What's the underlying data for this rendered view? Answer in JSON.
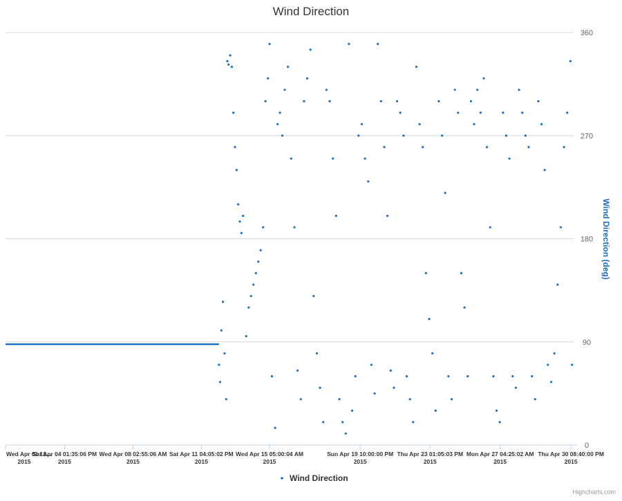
{
  "chart_data": {
    "type": "scatter",
    "title": "Wind Direction",
    "ylabel": "Wind Direction (deg)",
    "xlabel": "",
    "ylim": [
      0,
      360
    ],
    "y_ticks": [
      0,
      90,
      180,
      270,
      360
    ],
    "x_range": [
      "2015-04-01 12:00",
      "2015-05-01 00:00"
    ],
    "x_ticks": [
      {
        "label": "Wed Apr 01 12...",
        "year": "2015",
        "date": "2015-04-01 12:00"
      },
      {
        "label": "Sat Apr 04 01:35:06 PM",
        "year": "2015",
        "date": "2015-04-04 13:35"
      },
      {
        "label": "Wed Apr 08 02:55:06 AM",
        "year": "2015",
        "date": "2015-04-08 02:55"
      },
      {
        "label": "Sat Apr 11 04:05:02 PM",
        "year": "2015",
        "date": "2015-04-11 16:05"
      },
      {
        "label": "Wed Apr 15 05:00:04 AM",
        "year": "2015",
        "date": "2015-04-15 05:00"
      },
      {
        "label": "Sun Apr 19 10:00:00 PM",
        "year": "2015",
        "date": "2015-04-19 22:00"
      },
      {
        "label": "Thu Apr 23 01:05:03 PM",
        "year": "2015",
        "date": "2015-04-23 13:05"
      },
      {
        "label": "Mon Apr 27 04:25:02 AM",
        "year": "2015",
        "date": "2015-04-27 04:25"
      },
      {
        "label": "Thu Apr 30 08:40:00 PM",
        "year": "2015",
        "date": "2015-04-30 20:40"
      }
    ],
    "grid": true,
    "legend_position": "bottom-center",
    "series": [
      {
        "name": "Wind Direction",
        "color": "#1a6fbf",
        "constant_segment": {
          "start": "2015-04-01 12:00",
          "end": "2015-04-12 14:00",
          "value": 88
        },
        "points": [
          [
            "2015-04-12 14:00",
            70
          ],
          [
            "2015-04-12 15:30",
            55
          ],
          [
            "2015-04-12 17:00",
            100
          ],
          [
            "2015-04-12 19:00",
            125
          ],
          [
            "2015-04-12 21:00",
            80
          ],
          [
            "2015-04-12 23:00",
            40
          ],
          [
            "2015-04-13 00:30",
            335
          ],
          [
            "2015-04-13 02:00",
            332
          ],
          [
            "2015-04-13 04:00",
            340
          ],
          [
            "2015-04-13 06:00",
            330
          ],
          [
            "2015-04-13 08:00",
            290
          ],
          [
            "2015-04-13 10:00",
            260
          ],
          [
            "2015-04-13 12:00",
            240
          ],
          [
            "2015-04-13 14:00",
            210
          ],
          [
            "2015-04-13 16:00",
            195
          ],
          [
            "2015-04-13 18:00",
            185
          ],
          [
            "2015-04-13 20:00",
            200
          ],
          [
            "2015-04-14 00:00",
            95
          ],
          [
            "2015-04-14 03:00",
            120
          ],
          [
            "2015-04-14 06:00",
            130
          ],
          [
            "2015-04-14 09:00",
            140
          ],
          [
            "2015-04-14 12:00",
            150
          ],
          [
            "2015-04-14 15:00",
            160
          ],
          [
            "2015-04-14 18:00",
            170
          ],
          [
            "2015-04-14 21:00",
            190
          ],
          [
            "2015-04-15 00:00",
            300
          ],
          [
            "2015-04-15 03:00",
            320
          ],
          [
            "2015-04-15 05:00",
            350
          ],
          [
            "2015-04-15 08:00",
            60
          ],
          [
            "2015-04-15 12:00",
            15
          ],
          [
            "2015-04-15 15:00",
            280
          ],
          [
            "2015-04-15 18:00",
            290
          ],
          [
            "2015-04-15 21:00",
            270
          ],
          [
            "2015-04-16 00:00",
            310
          ],
          [
            "2015-04-16 04:00",
            330
          ],
          [
            "2015-04-16 08:00",
            250
          ],
          [
            "2015-04-16 12:00",
            190
          ],
          [
            "2015-04-16 16:00",
            65
          ],
          [
            "2015-04-16 20:00",
            40
          ],
          [
            "2015-04-17 00:00",
            300
          ],
          [
            "2015-04-17 04:00",
            320
          ],
          [
            "2015-04-17 08:00",
            345
          ],
          [
            "2015-04-17 12:00",
            130
          ],
          [
            "2015-04-17 16:00",
            80
          ],
          [
            "2015-04-17 20:00",
            50
          ],
          [
            "2015-04-18 00:00",
            20
          ],
          [
            "2015-04-18 04:00",
            310
          ],
          [
            "2015-04-18 08:00",
            300
          ],
          [
            "2015-04-18 12:00",
            250
          ],
          [
            "2015-04-18 16:00",
            200
          ],
          [
            "2015-04-18 20:00",
            40
          ],
          [
            "2015-04-19 00:00",
            20
          ],
          [
            "2015-04-19 04:00",
            10
          ],
          [
            "2015-04-19 08:00",
            350
          ],
          [
            "2015-04-19 12:00",
            30
          ],
          [
            "2015-04-19 16:00",
            60
          ],
          [
            "2015-04-19 20:00",
            270
          ],
          [
            "2015-04-20 00:00",
            280
          ],
          [
            "2015-04-20 04:00",
            250
          ],
          [
            "2015-04-20 08:00",
            230
          ],
          [
            "2015-04-20 12:00",
            70
          ],
          [
            "2015-04-20 16:00",
            45
          ],
          [
            "2015-04-20 20:00",
            350
          ],
          [
            "2015-04-21 00:00",
            300
          ],
          [
            "2015-04-21 04:00",
            260
          ],
          [
            "2015-04-21 08:00",
            200
          ],
          [
            "2015-04-21 12:00",
            65
          ],
          [
            "2015-04-21 16:00",
            50
          ],
          [
            "2015-04-21 20:00",
            300
          ],
          [
            "2015-04-22 00:00",
            290
          ],
          [
            "2015-04-22 04:00",
            270
          ],
          [
            "2015-04-22 08:00",
            60
          ],
          [
            "2015-04-22 12:00",
            40
          ],
          [
            "2015-04-22 16:00",
            20
          ],
          [
            "2015-04-22 20:00",
            330
          ],
          [
            "2015-04-23 00:00",
            280
          ],
          [
            "2015-04-23 04:00",
            260
          ],
          [
            "2015-04-23 08:00",
            150
          ],
          [
            "2015-04-23 12:00",
            110
          ],
          [
            "2015-04-23 16:00",
            80
          ],
          [
            "2015-04-23 20:00",
            30
          ],
          [
            "2015-04-24 00:00",
            300
          ],
          [
            "2015-04-24 04:00",
            270
          ],
          [
            "2015-04-24 08:00",
            220
          ],
          [
            "2015-04-24 12:00",
            60
          ],
          [
            "2015-04-24 16:00",
            40
          ],
          [
            "2015-04-24 20:00",
            310
          ],
          [
            "2015-04-25 00:00",
            290
          ],
          [
            "2015-04-25 04:00",
            150
          ],
          [
            "2015-04-25 08:00",
            120
          ],
          [
            "2015-04-25 12:00",
            60
          ],
          [
            "2015-04-25 16:00",
            300
          ],
          [
            "2015-04-25 20:00",
            280
          ],
          [
            "2015-04-26 00:00",
            310
          ],
          [
            "2015-04-26 04:00",
            290
          ],
          [
            "2015-04-26 08:00",
            320
          ],
          [
            "2015-04-26 12:00",
            260
          ],
          [
            "2015-04-26 16:00",
            190
          ],
          [
            "2015-04-26 20:00",
            60
          ],
          [
            "2015-04-27 00:00",
            30
          ],
          [
            "2015-04-27 04:00",
            20
          ],
          [
            "2015-04-27 08:00",
            290
          ],
          [
            "2015-04-27 12:00",
            270
          ],
          [
            "2015-04-27 16:00",
            250
          ],
          [
            "2015-04-27 20:00",
            60
          ],
          [
            "2015-04-28 00:00",
            50
          ],
          [
            "2015-04-28 04:00",
            310
          ],
          [
            "2015-04-28 08:00",
            290
          ],
          [
            "2015-04-28 12:00",
            270
          ],
          [
            "2015-04-28 16:00",
            260
          ],
          [
            "2015-04-28 20:00",
            60
          ],
          [
            "2015-04-29 00:00",
            40
          ],
          [
            "2015-04-29 04:00",
            300
          ],
          [
            "2015-04-29 08:00",
            280
          ],
          [
            "2015-04-29 12:00",
            240
          ],
          [
            "2015-04-29 16:00",
            70
          ],
          [
            "2015-04-29 20:00",
            55
          ],
          [
            "2015-04-30 00:00",
            80
          ],
          [
            "2015-04-30 04:00",
            140
          ],
          [
            "2015-04-30 08:00",
            190
          ],
          [
            "2015-04-30 12:00",
            260
          ],
          [
            "2015-04-30 16:00",
            290
          ],
          [
            "2015-04-30 20:00",
            335
          ],
          [
            "2015-04-30 22:00",
            70
          ]
        ]
      }
    ]
  },
  "legend": {
    "label": "Wind Direction"
  },
  "credits": {
    "text": "Highcharts.com"
  }
}
